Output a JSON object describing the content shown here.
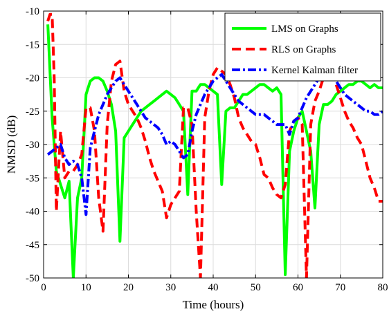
{
  "chart_data": {
    "type": "line",
    "xlabel": "Time (hours)",
    "ylabel": "NMSD (dB)",
    "xlim": [
      0,
      80
    ],
    "ylim": [
      -50,
      -10
    ],
    "xticks": [
      0,
      10,
      20,
      30,
      40,
      50,
      60,
      70,
      80
    ],
    "yticks": [
      -50,
      -45,
      -40,
      -35,
      -30,
      -25,
      -20,
      -15,
      -10
    ],
    "grid": true,
    "legend_position": "top-right",
    "series": [
      {
        "name": "LMS on Graphs",
        "color": "#00ff00",
        "style": "solid",
        "x": [
          1,
          2,
          3,
          4,
          5,
          6,
          7,
          8,
          9,
          10,
          11,
          12,
          13,
          14,
          15,
          16,
          17,
          18,
          19,
          20,
          21,
          22,
          23,
          24,
          25,
          26,
          27,
          28,
          29,
          30,
          31,
          32,
          33,
          34,
          35,
          36,
          37,
          38,
          39,
          40,
          41,
          42,
          43,
          44,
          45,
          46,
          47,
          48,
          49,
          50,
          51,
          52,
          53,
          54,
          55,
          56,
          57,
          58,
          59,
          60,
          61,
          62,
          63,
          64,
          65,
          66,
          67,
          68,
          69,
          70,
          71,
          72,
          73,
          74,
          75,
          76,
          77,
          78,
          79,
          80
        ],
        "values": [
          -12,
          -26,
          -34,
          -36,
          -38,
          -35.5,
          -50,
          -38,
          -35,
          -22.5,
          -20.5,
          -20,
          -20,
          -20.5,
          -22,
          -24,
          -28,
          -44.5,
          -29,
          -28,
          -27,
          -26,
          -25,
          -24.5,
          -24,
          -23.5,
          -23,
          -22.5,
          -22,
          -22.5,
          -23,
          -24,
          -25,
          -37.5,
          -22,
          -22,
          -21,
          -21,
          -21.5,
          -22,
          -22.5,
          -36,
          -25,
          -24.5,
          -24.5,
          -23.5,
          -22.5,
          -22.5,
          -22,
          -21.5,
          -21,
          -21,
          -21.5,
          -22,
          -21.5,
          -22.5,
          -49.5,
          -31,
          -28,
          -26,
          -25,
          -28,
          -31,
          -39.5,
          -27,
          -24,
          -24,
          -23.5,
          -22.5,
          -22,
          -21.5,
          -21,
          -21,
          -20.5,
          -20.5,
          -21,
          -21.5,
          -21,
          -21.5,
          -21.5
        ]
      },
      {
        "name": "RLS on Graphs",
        "color": "#ff0000",
        "style": "dashed",
        "x": [
          1,
          1.5,
          2,
          2.5,
          3,
          4,
          5,
          6,
          7,
          8,
          9,
          10,
          11,
          12,
          13,
          14,
          15,
          16,
          17,
          18,
          19,
          20,
          21,
          22,
          23,
          24,
          25,
          26,
          27,
          28,
          29,
          30,
          31,
          32,
          33,
          34,
          35,
          36,
          37,
          38,
          39,
          40,
          41,
          42,
          43,
          44,
          45,
          46,
          47,
          48,
          49,
          50,
          51,
          52,
          53,
          54,
          55,
          56,
          57,
          58,
          59,
          60,
          61,
          62,
          63,
          64,
          65,
          66,
          67,
          68,
          69,
          70,
          71,
          72,
          73,
          74,
          75,
          76,
          77,
          78,
          79,
          80
        ],
        "values": [
          -11.5,
          -10.5,
          -10.5,
          -20,
          -40,
          -28,
          -35,
          -34,
          -34,
          -33,
          -31.5,
          -24.5,
          -24.5,
          -28,
          -38,
          -43,
          -27,
          -20.5,
          -18,
          -17.5,
          -22,
          -24,
          -25,
          -26,
          -27.5,
          -29.5,
          -32,
          -34,
          -35.5,
          -37,
          -41,
          -39,
          -38,
          -37,
          -24.5,
          -24.5,
          -27,
          -40,
          -50,
          -26,
          -22,
          -19.5,
          -18.5,
          -19,
          -19.5,
          -21,
          -23,
          -26,
          -27.5,
          -28.5,
          -29.5,
          -30,
          -32,
          -34.5,
          -35,
          -36.5,
          -37.5,
          -38,
          -36,
          -28,
          -26.5,
          -26,
          -27,
          -50,
          -27,
          -23.5,
          -22,
          -20,
          -18.5,
          -19,
          -21,
          -23,
          -25,
          -26.5,
          -27.5,
          -29,
          -30,
          -32.5,
          -35,
          -36.5,
          -38.5,
          -38.5
        ]
      },
      {
        "name": "Kernel Kalman filter",
        "color": "#0000ff",
        "style": "dash-dot",
        "x": [
          1,
          2,
          3,
          4,
          5,
          6,
          7,
          8,
          9,
          10,
          11,
          12,
          13,
          14,
          15,
          16,
          17,
          18,
          19,
          20,
          21,
          22,
          23,
          24,
          25,
          26,
          27,
          28,
          29,
          30,
          31,
          32,
          33,
          34,
          35,
          36,
          37,
          38,
          39,
          40,
          41,
          42,
          43,
          44,
          45,
          46,
          47,
          48,
          49,
          50,
          51,
          52,
          53,
          54,
          55,
          56,
          57,
          58,
          59,
          60,
          61,
          62,
          63,
          64,
          65,
          66,
          67,
          68,
          69,
          70,
          71,
          72,
          73,
          74,
          75,
          76,
          77,
          78,
          79,
          80
        ],
        "values": [
          -31.5,
          -31,
          -30.5,
          -30,
          -32,
          -33,
          -32.5,
          -33,
          -35,
          -40.5,
          -30.5,
          -28,
          -25.5,
          -24,
          -22.5,
          -21.5,
          -20.5,
          -20,
          -21,
          -22,
          -23,
          -24,
          -25,
          -26,
          -26.5,
          -27,
          -27.5,
          -28.5,
          -30,
          -29.5,
          -30,
          -31,
          -32,
          -31.5,
          -28,
          -25.5,
          -24,
          -22.5,
          -21.5,
          -20.5,
          -20,
          -19.5,
          -20.5,
          -21.5,
          -22.5,
          -23.5,
          -24,
          -24.5,
          -25,
          -25.5,
          -25.5,
          -25.5,
          -26,
          -26.5,
          -27,
          -27,
          -27,
          -28.5,
          -26.5,
          -26,
          -24.5,
          -23,
          -22,
          -21,
          -20,
          -19,
          -19,
          -20,
          -20.5,
          -21.5,
          -22.5,
          -23,
          -23.5,
          -24,
          -24.5,
          -25,
          -25,
          -25.5,
          -25.5,
          -25
        ]
      }
    ]
  }
}
